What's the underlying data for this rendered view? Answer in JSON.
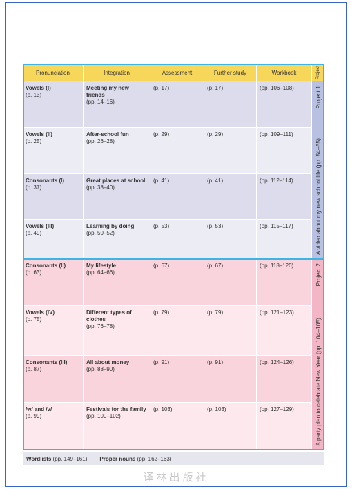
{
  "header": {
    "columns": [
      "Pronunciation",
      "Integration",
      "Assessment",
      "Further study",
      "Workbook",
      "Project"
    ]
  },
  "units": [
    {
      "project_title": "A video about my new school life (pp. 54–55)",
      "project_label": "Project 1",
      "rows": [
        {
          "pronunciation": {
            "title": "Vowels (I)",
            "pages": "(p. 13)"
          },
          "integration": {
            "title": "Meeting my new friends",
            "pages": "(pp. 14–16)"
          },
          "assessment": "(p. 17)",
          "further_study": "(p. 17)",
          "workbook": "(pp. 106–108)"
        },
        {
          "pronunciation": {
            "title": "Vowels (II)",
            "pages": "(p. 25)"
          },
          "integration": {
            "title": "After-school fun",
            "pages": "(pp. 26–28)"
          },
          "assessment": "(p. 29)",
          "further_study": "(p. 29)",
          "workbook": "(pp. 109–111)"
        },
        {
          "pronunciation": {
            "title": "Consonants (I)",
            "pages": "(p. 37)"
          },
          "integration": {
            "title": "Great places at school",
            "pages": "(pp. 38–40)"
          },
          "assessment": "(p. 41)",
          "further_study": "(p. 41)",
          "workbook": "(pp. 112–114)"
        },
        {
          "pronunciation": {
            "title": "Vowels (III)",
            "pages": "(p. 49)"
          },
          "integration": {
            "title": "Learning by doing",
            "pages": "(pp. 50–52)"
          },
          "assessment": "(p. 53)",
          "further_study": "(p. 53)",
          "workbook": "(pp. 115–117)"
        }
      ]
    },
    {
      "project_title": "A party plan to celebrate New Year (pp. 104–105)",
      "project_label": "Project 2",
      "rows": [
        {
          "pronunciation": {
            "title": "Consonants (II)",
            "pages": "(p. 63)"
          },
          "integration": {
            "title": "My lifestyle",
            "pages": "(pp. 64–66)"
          },
          "assessment": "(p. 67)",
          "further_study": "(p. 67)",
          "workbook": "(pp. 118–120)"
        },
        {
          "pronunciation": {
            "title": "Vowels (IV)",
            "pages": "(p. 75)"
          },
          "integration": {
            "title": "Different types of clothes",
            "pages": "(pp. 76–78)"
          },
          "assessment": "(p. 79)",
          "further_study": "(p. 79)",
          "workbook": "(pp. 121–123)"
        },
        {
          "pronunciation": {
            "title": "Consonants (III)",
            "pages": "(p. 87)"
          },
          "integration": {
            "title": "All about money",
            "pages": "(pp. 88–90)"
          },
          "assessment": "(p. 91)",
          "further_study": "(p. 91)",
          "workbook": "(pp. 124–126)"
        },
        {
          "pronunciation": {
            "title": "/w/ and /v/",
            "pages": "(p. 99)"
          },
          "integration": {
            "title": "Festivals for the family",
            "pages": "(pp. 100–102)"
          },
          "assessment": "(p. 103)",
          "further_study": "(p. 103)",
          "workbook": "(pp. 127–129)"
        }
      ]
    }
  ],
  "footer": {
    "wordlists": {
      "label": "Wordlists",
      "pages": "(pp. 149–161)"
    },
    "proper_nouns": {
      "label": "Proper nouns",
      "pages": "(pp. 162–163)"
    }
  },
  "watermark": "译林出版社"
}
